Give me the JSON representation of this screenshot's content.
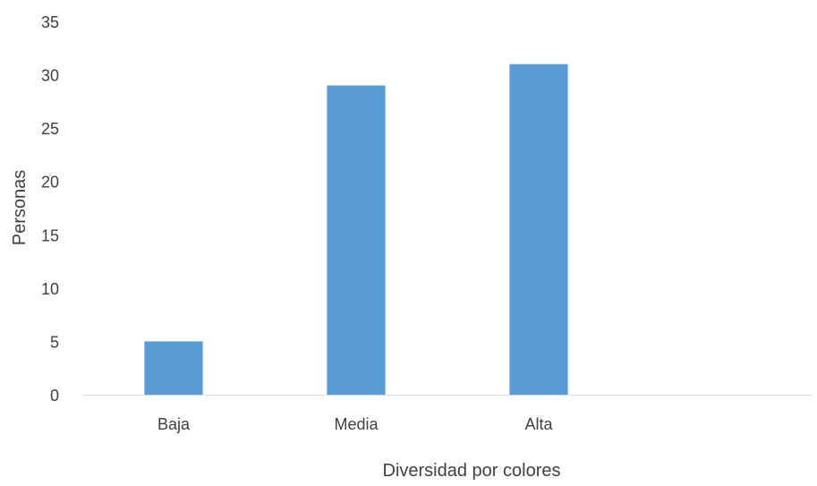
{
  "chart_data": {
    "type": "bar",
    "title": "",
    "xlabel": "Diversidad por colores",
    "ylabel": "Personas",
    "categories": [
      "Baja",
      "Media",
      "Alta",
      ""
    ],
    "values": [
      5,
      29,
      31,
      null
    ],
    "ylim": [
      0,
      35
    ],
    "yticks": [
      0,
      5,
      10,
      15,
      20,
      25,
      30,
      35
    ],
    "ytick_labels": [
      "0",
      "5",
      "10",
      "15",
      "20",
      "25",
      "30",
      "35"
    ],
    "grid": false,
    "legend": "none",
    "bar_color": "#5B9BD5",
    "axis_color": "#d9d9d9"
  }
}
